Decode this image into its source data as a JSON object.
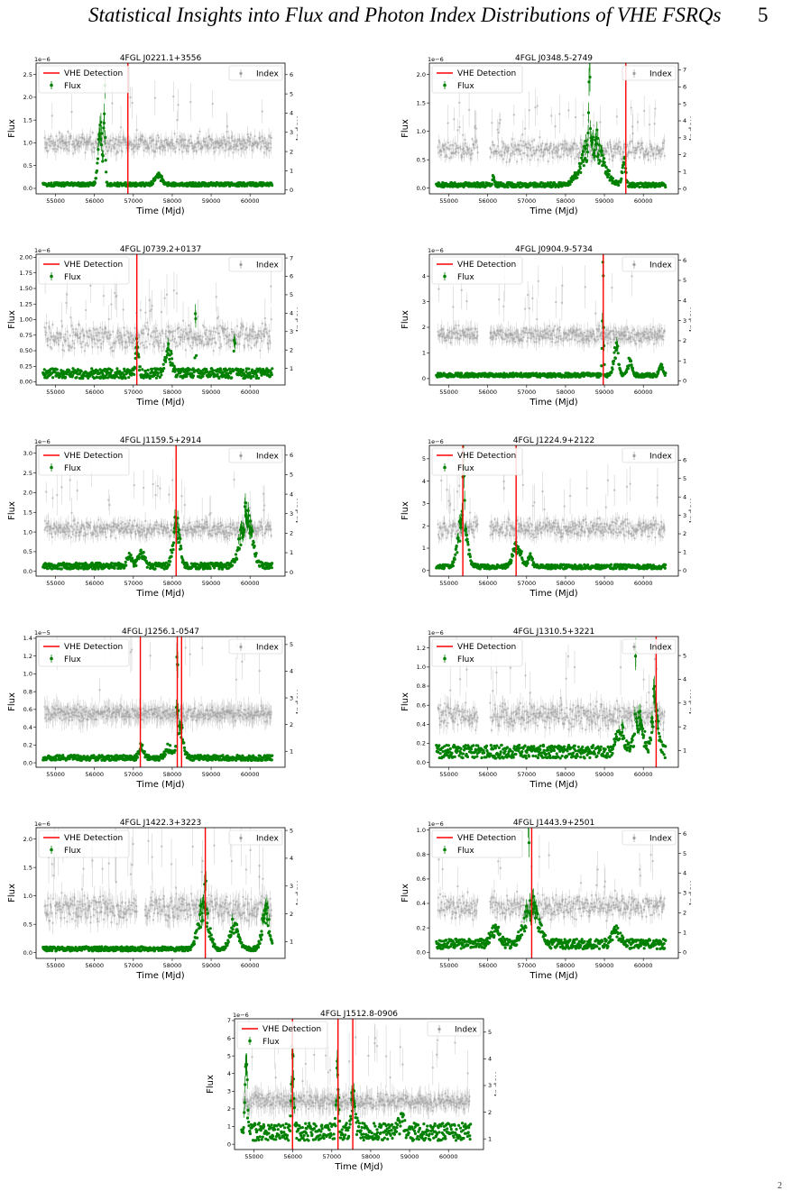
{
  "page": {
    "header_title": "Statistical Insights into Flux and Photon Index Distributions of VHE FSRQs",
    "page_number": "5",
    "footer_mark": "2"
  },
  "style": {
    "flux_color": "#008000",
    "index_color": "#9e9e9e",
    "vhe_color": "#ff0000"
  },
  "chart_data": [
    {
      "type": "scatter",
      "title": "4FGL J0221.1+3556",
      "xlabel": "Time (Mjd)",
      "ylabel": "Flux",
      "ylabel_right": "Index",
      "exponent": "1e−6",
      "xlim": [
        54500,
        60900
      ],
      "xticks": [
        55000,
        56000,
        57000,
        58000,
        59000,
        60000
      ],
      "ylim": [
        -0.12,
        2.75
      ],
      "yticks": [
        0.0,
        0.5,
        1.0,
        1.5,
        2.0,
        2.5
      ],
      "y2lim": [
        -0.2,
        6.6
      ],
      "y2ticks": [
        0,
        1,
        2,
        3,
        4,
        5,
        6
      ],
      "vhe_detections": [
        56860
      ],
      "legend": [
        "VHE Detection",
        "Flux"
      ],
      "legend_right": [
        "Index"
      ],
      "flux_profile": {
        "base": 0.08,
        "noise": 0.04,
        "flares": [
          [
            56150,
            1.3,
            80
          ],
          [
            56260,
            2.3,
            25
          ],
          [
            57650,
            0.25,
            120
          ]
        ]
      },
      "index_profile": {
        "base": 2.4,
        "noise": 0.35,
        "spikes": 0.05
      }
    },
    {
      "type": "scatter",
      "title": "4FGL J0348.5-2749",
      "xlabel": "Time (Mjd)",
      "ylabel": "Flux",
      "ylabel_right": "Index",
      "exponent": "1e−6",
      "xlim": [
        54500,
        60900
      ],
      "xticks": [
        55000,
        56000,
        57000,
        58000,
        59000,
        60000
      ],
      "ylim": [
        -0.1,
        2.2
      ],
      "yticks": [
        0.0,
        0.5,
        1.0,
        1.5,
        2.0
      ],
      "y2lim": [
        -0.3,
        7.4
      ],
      "y2ticks": [
        0,
        1,
        2,
        3,
        4,
        5,
        6,
        7
      ],
      "vhe_detections": [
        59550
      ],
      "legend": [
        "VHE Detection",
        "Flux"
      ],
      "legend_right": [
        "Index"
      ],
      "flux_profile": {
        "base": 0.05,
        "noise": 0.04,
        "flares": [
          [
            58700,
            0.9,
            350
          ],
          [
            58620,
            2.1,
            20
          ],
          [
            59500,
            0.5,
            60
          ],
          [
            56150,
            0.22,
            30
          ]
        ]
      },
      "index_profile": {
        "base": 2.3,
        "noise": 0.45,
        "spikes": 0.08
      }
    },
    {
      "type": "scatter",
      "title": "4FGL J0739.2+0137",
      "xlabel": "Time (Mjd)",
      "ylabel": "Flux",
      "ylabel_right": "Index",
      "exponent": "1e−6",
      "xlim": [
        54500,
        60900
      ],
      "xticks": [
        55000,
        56000,
        57000,
        58000,
        59000,
        60000
      ],
      "ylim": [
        -0.05,
        2.05
      ],
      "yticks": [
        0.0,
        0.25,
        0.5,
        0.75,
        1.0,
        1.25,
        1.5,
        1.75,
        2.0
      ],
      "y2lim": [
        0.1,
        7.2
      ],
      "y2ticks": [
        1,
        2,
        3,
        4,
        5,
        6,
        7
      ],
      "vhe_detections": [
        57090
      ],
      "legend": [
        "VHE Detection",
        "Flux"
      ],
      "legend_right": [
        "Index"
      ],
      "flux_profile": {
        "base": 0.12,
        "noise": 0.08,
        "flares": [
          [
            57100,
            0.6,
            50
          ],
          [
            58600,
            1.55,
            15
          ],
          [
            59600,
            1.1,
            15
          ],
          [
            57900,
            0.45,
            100
          ]
        ]
      },
      "index_profile": {
        "base": 2.7,
        "noise": 0.5,
        "spikes": 0.08
      }
    },
    {
      "type": "scatter",
      "title": "4FGL J0904.9-5734",
      "xlabel": "Time (Mjd)",
      "ylabel": "Flux",
      "ylabel_right": "Index",
      "exponent": "1e−6",
      "xlim": [
        54500,
        60900
      ],
      "xticks": [
        55000,
        56000,
        57000,
        58000,
        59000,
        60000
      ],
      "ylim": [
        -0.25,
        4.85
      ],
      "yticks": [
        0,
        1,
        2,
        3,
        4
      ],
      "y2lim": [
        -0.2,
        6.3
      ],
      "y2ticks": [
        0,
        1,
        2,
        3,
        4,
        5,
        6
      ],
      "vhe_detections": [
        58970
      ],
      "legend": [
        "VHE Detection",
        "Flux"
      ],
      "legend_right": [
        "Index"
      ],
      "flux_profile": {
        "base": 0.12,
        "noise": 0.08,
        "flares": [
          [
            58960,
            4.2,
            25
          ],
          [
            59300,
            1.3,
            80
          ],
          [
            59650,
            0.7,
            70
          ],
          [
            60450,
            0.45,
            60
          ]
        ]
      },
      "index_profile": {
        "base": 2.3,
        "noise": 0.3,
        "spikes": 0.04
      }
    },
    {
      "type": "scatter",
      "title": "4FGL J1159.5+2914",
      "xlabel": "Time (Mjd)",
      "ylabel": "Flux",
      "ylabel_right": "Index",
      "exponent": "1e−6",
      "xlim": [
        54500,
        60900
      ],
      "xticks": [
        55000,
        56000,
        57000,
        58000,
        59000,
        60000
      ],
      "ylim": [
        -0.12,
        3.2
      ],
      "yticks": [
        0.0,
        0.5,
        1.0,
        1.5,
        2.0,
        2.5,
        3.0
      ],
      "y2lim": [
        -0.2,
        6.5
      ],
      "y2ticks": [
        0,
        1,
        2,
        3,
        4,
        5,
        6
      ],
      "vhe_detections": [
        58100
      ],
      "legend": [
        "VHE Detection",
        "Flux"
      ],
      "legend_right": [
        "Index"
      ],
      "flux_profile": {
        "base": 0.12,
        "noise": 0.08,
        "flares": [
          [
            58100,
            1.2,
            120
          ],
          [
            59900,
            1.4,
            200
          ],
          [
            57200,
            0.4,
            120
          ],
          [
            56900,
            0.3,
            80
          ]
        ]
      },
      "index_profile": {
        "base": 2.2,
        "noise": 0.3,
        "spikes": 0.05
      }
    },
    {
      "type": "scatter",
      "title": "4FGL J1224.9+2122",
      "xlabel": "Time (Mjd)",
      "ylabel": "Flux",
      "ylabel_right": "Index",
      "exponent": "1e−6",
      "xlim": [
        54500,
        60900
      ],
      "xticks": [
        55000,
        56000,
        57000,
        58000,
        59000,
        60000
      ],
      "ylim": [
        -0.25,
        5.6
      ],
      "yticks": [
        0,
        1,
        2,
        3,
        4,
        5
      ],
      "y2lim": [
        -0.3,
        6.8
      ],
      "y2ticks": [
        0,
        1,
        2,
        3,
        4,
        5,
        6
      ],
      "vhe_detections": [
        55360,
        56730
      ],
      "legend": [
        "VHE Detection",
        "Flux"
      ],
      "legend_right": [
        "Index"
      ],
      "flux_profile": {
        "base": 0.15,
        "noise": 0.1,
        "flares": [
          [
            55350,
            2.3,
            160
          ],
          [
            55380,
            3.5,
            25
          ],
          [
            56750,
            1.0,
            150
          ],
          [
            57100,
            0.5,
            80
          ]
        ]
      },
      "index_profile": {
        "base": 2.3,
        "noise": 0.35,
        "spikes": 0.05
      }
    },
    {
      "type": "scatter",
      "title": "4FGL J1256.1-0547",
      "xlabel": "Time (Mjd)",
      "ylabel": "Flux",
      "ylabel_right": "Index",
      "exponent": "1e−5",
      "xlim": [
        54500,
        60900
      ],
      "xticks": [
        55000,
        56000,
        57000,
        58000,
        59000,
        60000
      ],
      "ylim": [
        -0.05,
        1.42
      ],
      "yticks": [
        0.0,
        0.2,
        0.4,
        0.6,
        0.8,
        1.0,
        1.2,
        1.4
      ],
      "y2lim": [
        0.4,
        5.3
      ],
      "y2ticks": [
        1,
        2,
        3,
        4,
        5
      ],
      "vhe_detections": [
        57180,
        58130,
        58240
      ],
      "legend": [
        "VHE Detection",
        "Flux"
      ],
      "legend_right": [
        "Index"
      ],
      "flux_profile": {
        "base": 0.05,
        "noise": 0.03,
        "flares": [
          [
            58130,
            1.3,
            20
          ],
          [
            58200,
            0.35,
            120
          ],
          [
            57200,
            0.15,
            80
          ],
          [
            57900,
            0.12,
            100
          ]
        ]
      },
      "index_profile": {
        "base": 2.4,
        "noise": 0.2,
        "spikes": 0.04
      }
    },
    {
      "type": "scatter",
      "title": "4FGL J1310.5+3221",
      "xlabel": "Time (Mjd)",
      "ylabel": "Flux",
      "ylabel_right": "Index",
      "exponent": "1e−6",
      "xlim": [
        54500,
        60900
      ],
      "xticks": [
        55000,
        56000,
        57000,
        58000,
        59000,
        60000
      ],
      "ylim": [
        -0.05,
        1.32
      ],
      "yticks": [
        0.0,
        0.2,
        0.4,
        0.6,
        0.8,
        1.0,
        1.2
      ],
      "y2lim": [
        0.3,
        5.8
      ],
      "y2ticks": [
        1,
        2,
        3,
        4,
        5
      ],
      "vhe_detections": [
        60330
      ],
      "legend": [
        "VHE Detection",
        "Flux"
      ],
      "legend_right": [
        "Index"
      ],
      "flux_profile": {
        "base": 0.1,
        "noise": 0.07,
        "flares": [
          [
            60300,
            0.6,
            100
          ],
          [
            59900,
            0.35,
            150
          ],
          [
            59400,
            0.25,
            150
          ],
          [
            59800,
            1.0,
            15
          ]
        ]
      },
      "index_profile": {
        "base": 2.5,
        "noise": 0.4,
        "spikes": 0.06
      }
    },
    {
      "type": "scatter",
      "title": "4FGL J1422.3+3223",
      "xlabel": "Time (Mjd)",
      "ylabel": "Flux",
      "ylabel_right": "Index",
      "exponent": "1e−6",
      "xlim": [
        54500,
        60900
      ],
      "xticks": [
        55000,
        56000,
        57000,
        58000,
        59000,
        60000
      ],
      "ylim": [
        -0.1,
        2.2
      ],
      "yticks": [
        0.0,
        0.5,
        1.0,
        1.5,
        2.0
      ],
      "y2lim": [
        0.4,
        5.1
      ],
      "y2ticks": [
        1,
        2,
        3,
        4,
        5
      ],
      "vhe_detections": [
        58850
      ],
      "legend": [
        "VHE Detection",
        "Flux"
      ],
      "legend_right": [
        "Index"
      ],
      "flux_profile": {
        "base": 0.06,
        "noise": 0.04,
        "flares": [
          [
            58800,
            0.8,
            180
          ],
          [
            58850,
            2.0,
            20
          ],
          [
            59600,
            0.5,
            150
          ],
          [
            60400,
            0.8,
            120
          ]
        ]
      },
      "index_profile": {
        "base": 2.2,
        "noise": 0.35,
        "spikes": 0.06
      }
    },
    {
      "type": "scatter",
      "title": "4FGL J1443.9+2501",
      "xlabel": "Time (Mjd)",
      "ylabel": "Flux",
      "ylabel_right": "Index",
      "exponent": "1e−6",
      "xlim": [
        54500,
        60900
      ],
      "xticks": [
        55000,
        56000,
        57000,
        58000,
        59000,
        60000
      ],
      "ylim": [
        -0.05,
        1.02
      ],
      "yticks": [
        0.0,
        0.2,
        0.4,
        0.6,
        0.8,
        1.0
      ],
      "y2lim": [
        -0.3,
        6.3
      ],
      "y2ticks": [
        0,
        1,
        2,
        3,
        4,
        5,
        6
      ],
      "vhe_detections": [
        57130
      ],
      "legend": [
        "VHE Detection",
        "Flux"
      ],
      "legend_right": [
        "Index"
      ],
      "flux_profile": {
        "base": 0.06,
        "noise": 0.04,
        "flares": [
          [
            57130,
            0.35,
            250
          ],
          [
            57050,
            0.9,
            15
          ],
          [
            56200,
            0.15,
            150
          ],
          [
            59300,
            0.12,
            150
          ]
        ]
      },
      "index_profile": {
        "base": 2.3,
        "noise": 0.45,
        "spikes": 0.06
      }
    },
    {
      "type": "scatter",
      "title": "4FGL J1512.8-0906",
      "xlabel": "Time (Mjd)",
      "ylabel": "Flux",
      "ylabel_right": "Index",
      "exponent": "1e−6",
      "xlim": [
        54500,
        60900
      ],
      "xticks": [
        55000,
        56000,
        57000,
        58000,
        59000,
        60000
      ],
      "ylim": [
        -0.3,
        7.1
      ],
      "yticks": [
        0,
        1,
        2,
        3,
        4,
        5,
        6,
        7
      ],
      "y2lim": [
        0.6,
        5.5
      ],
      "y2ticks": [
        1,
        2,
        3,
        4,
        5
      ],
      "vhe_detections": [
        55990,
        57160,
        57540
      ],
      "legend": [
        "VHE Detection",
        "Flux"
      ],
      "legend_right": [
        "Index"
      ],
      "flux_profile": {
        "base": 0.6,
        "noise": 0.5,
        "flares": [
          [
            54800,
            4.0,
            40
          ],
          [
            55990,
            5.0,
            40
          ],
          [
            57150,
            4.3,
            40
          ],
          [
            57550,
            2.0,
            80
          ],
          [
            58800,
            0.8,
            100
          ]
        ]
      },
      "index_profile": {
        "base": 2.4,
        "noise": 0.2,
        "spikes": 0.05
      }
    }
  ]
}
